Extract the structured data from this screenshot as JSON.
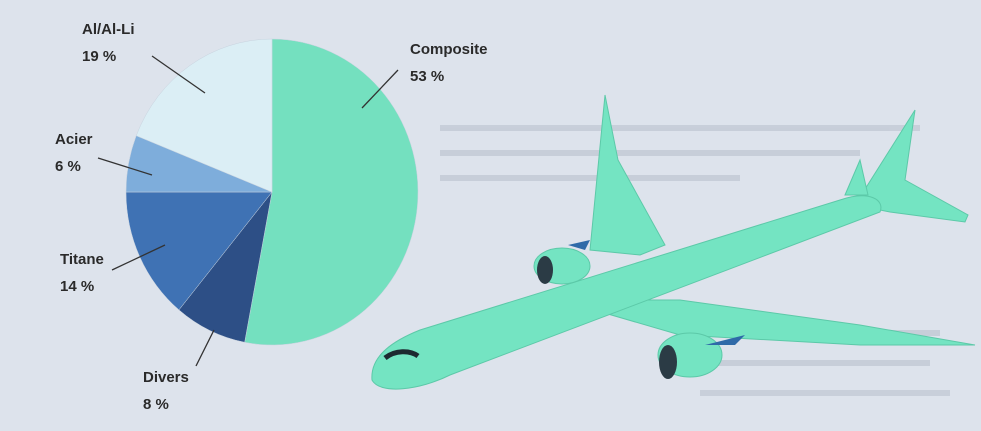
{
  "chart_data": {
    "type": "pie",
    "categories": [
      "Composite",
      "Divers",
      "Titane",
      "Acier",
      "Al/Al-Li"
    ],
    "values": [
      53,
      8,
      14,
      6,
      19
    ],
    "value_labels": [
      "53 %",
      "8 %",
      "14 %",
      "6 %",
      "19 %"
    ],
    "colors": [
      "#74e0bf",
      "#2d4f86",
      "#3f72b4",
      "#7eaddb",
      "#dbeef5"
    ]
  }
}
